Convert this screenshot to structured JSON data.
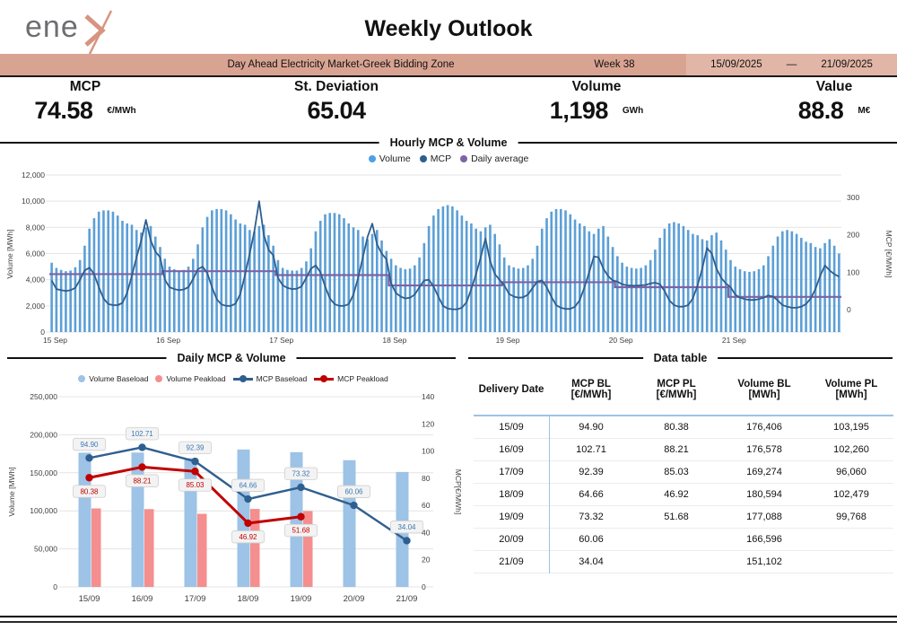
{
  "header": {
    "title": "Weekly Outlook",
    "logo": {
      "text": "ene",
      "mark": "x-chevron"
    }
  },
  "banner": {
    "market_label": "Day Ahead Electricity Market-Greek Bidding Zone",
    "week_label": "Week 38",
    "date_from": "15/09/2025",
    "date_separator": "—",
    "date_to": "21/09/2025"
  },
  "kpis": [
    {
      "label": "MCP",
      "value": "74.58",
      "unit": "€/MWh"
    },
    {
      "label": "St. Deviation",
      "value": "65.04",
      "unit": ""
    },
    {
      "label": "Volume",
      "value": "1,198",
      "unit": "GWh"
    },
    {
      "label": "Value",
      "value": "88.8",
      "unit": "M€"
    }
  ],
  "colors": {
    "banner": "#D9A392",
    "banner_light": "#E2B6A6",
    "logo_accent": "#D79480",
    "bar_volume": "#5C9FD6",
    "line_mcp": "#2E5E8E",
    "line_daily_avg": "#7D63A5",
    "bar_volume_bl": "#9DC3E6",
    "bar_volume_pl": "#F58E8E",
    "line_mcp_bl": "#2F5F8F",
    "line_mcp_pl": "#C00000",
    "table_accent": "#9DC3E6",
    "grid": "#E4E4E4",
    "tick_text": "#404040",
    "label_box_bg": "#F3F3F3",
    "label_box_border": "#CFCFCF"
  },
  "hourly_section": {
    "title": "Hourly MCP & Volume",
    "legend": [
      {
        "label": "Volume",
        "color": "#4DA0E8",
        "type": "dot"
      },
      {
        "label": "MCP",
        "color": "#2E5E8E",
        "type": "dot"
      },
      {
        "label": "Daily average",
        "color": "#7D63A5",
        "type": "dot"
      }
    ],
    "axes": {
      "left_title": "Volume [MWh]",
      "right_title": "MCP [€/MWh]"
    },
    "chart_data": {
      "type": "bar+line",
      "x_day_labels": [
        "15 Sep",
        "16 Sep",
        "17 Sep",
        "18 Sep",
        "19 Sep",
        "20 Sep",
        "21 Sep"
      ],
      "y_left": {
        "min": 0,
        "max": 12000,
        "step": 2000
      },
      "y_right": {
        "min": 0,
        "max": 300,
        "step": 100
      },
      "series": [
        {
          "name": "Volume",
          "type": "bar",
          "axis": "left",
          "unit": "MWh",
          "hourly_values": [
            [
              5300,
              4900,
              4750,
              4650,
              4700,
              4950,
              5500,
              6600,
              7900,
              8700,
              9200,
              9300,
              9300,
              9200,
              8900,
              8500,
              8300,
              8200,
              7800,
              7600,
              8000,
              8100,
              7300,
              6500
            ],
            [
              5600,
              5000,
              4800,
              4700,
              4750,
              5000,
              5600,
              6700,
              8000,
              8800,
              9300,
              9400,
              9400,
              9300,
              9000,
              8600,
              8300,
              8200,
              7800,
              7700,
              8100,
              8200,
              7400,
              6600
            ],
            [
              5500,
              4900,
              4750,
              4700,
              4700,
              4900,
              5400,
              6400,
              7700,
              8500,
              9000,
              9100,
              9100,
              9000,
              8700,
              8300,
              8000,
              7800,
              7300,
              7100,
              7500,
              7800,
              7000,
              6200
            ],
            [
              5600,
              5100,
              4900,
              4800,
              4850,
              5100,
              5700,
              6800,
              8100,
              8900,
              9400,
              9600,
              9700,
              9600,
              9300,
              8900,
              8500,
              8300,
              7900,
              7700,
              8000,
              8200,
              7500,
              6700
            ],
            [
              5700,
              5100,
              4950,
              4850,
              4900,
              5100,
              5600,
              6600,
              7900,
              8700,
              9200,
              9400,
              9400,
              9300,
              9000,
              8600,
              8300,
              8100,
              7700,
              7500,
              7900,
              8100,
              7300,
              6500
            ],
            [
              5800,
              5300,
              5000,
              4900,
              4850,
              4900,
              5100,
              5500,
              6300,
              7200,
              7900,
              8300,
              8400,
              8300,
              8100,
              7800,
              7500,
              7400,
              7100,
              7000,
              7400,
              7600,
              7000,
              6300
            ],
            [
              5500,
              5000,
              4800,
              4650,
              4600,
              4650,
              4800,
              5100,
              5800,
              6600,
              7300,
              7700,
              7800,
              7700,
              7500,
              7200,
              6900,
              6800,
              6500,
              6400,
              6800,
              7100,
              6600,
              6000
            ]
          ]
        },
        {
          "name": "MCP",
          "type": "line",
          "axis": "right",
          "unit": "€/MWh",
          "hourly_values": [
            [
              78,
              55,
              52,
              50,
              52,
              58,
              80,
              105,
              112,
              95,
              60,
              30,
              15,
              12,
              12,
              18,
              45,
              90,
              140,
              185,
              240,
              185,
              155,
              140
            ],
            [
              80,
              60,
              55,
              52,
              54,
              60,
              82,
              108,
              115,
              98,
              60,
              28,
              14,
              10,
              10,
              16,
              42,
              92,
              150,
              210,
              290,
              200,
              160,
              145
            ],
            [
              85,
              65,
              58,
              55,
              56,
              62,
              85,
              110,
              118,
              100,
              62,
              30,
              15,
              10,
              10,
              15,
              40,
              85,
              140,
              195,
              230,
              175,
              150,
              135
            ],
            [
              70,
              45,
              35,
              30,
              32,
              40,
              60,
              78,
              80,
              62,
              35,
              10,
              3,
              1,
              1,
              5,
              20,
              55,
              95,
              140,
              190,
              130,
              95,
              80
            ],
            [
              65,
              42,
              35,
              32,
              33,
              40,
              58,
              75,
              78,
              60,
              34,
              12,
              5,
              2,
              2,
              8,
              25,
              60,
              100,
              142,
              140,
              110,
              90,
              78
            ],
            [
              75,
              68,
              65,
              64,
              64,
              65,
              66,
              70,
              72,
              68,
              50,
              25,
              12,
              8,
              8,
              12,
              30,
              65,
              110,
              165,
              150,
              110,
              85,
              70
            ],
            [
              60,
              40,
              32,
              28,
              26,
              26,
              28,
              32,
              38,
              35,
              25,
              12,
              8,
              5,
              5,
              8,
              15,
              30,
              55,
              90,
              118,
              105,
              95,
              88
            ]
          ]
        },
        {
          "name": "Daily average",
          "type": "step-line",
          "axis": "right",
          "daily_values": [
            94.9,
            102.71,
            92.39,
            64.66,
            73.32,
            60.06,
            34.04
          ]
        }
      ]
    }
  },
  "daily_section": {
    "title": "Daily MCP & Volume",
    "legend": [
      {
        "label": "Volume Baseload",
        "color": "#9DC3E6",
        "type": "dot"
      },
      {
        "label": "Volume Peakload",
        "color": "#F58E8E",
        "type": "dot"
      },
      {
        "label": "MCP Baseload",
        "color": "#2F5F8F",
        "type": "line-dot"
      },
      {
        "label": "MCP Peakload",
        "color": "#C00000",
        "type": "line-dot"
      }
    ],
    "axes": {
      "left_title": "Volume [MWh]",
      "right_title": "MCP[€/MWh]"
    },
    "chart_data": {
      "type": "bar+line",
      "categories": [
        "15/09",
        "16/09",
        "17/09",
        "18/09",
        "19/09",
        "20/09",
        "21/09"
      ],
      "y_left": {
        "min": 0,
        "max": 250000,
        "step": 50000
      },
      "y_right": {
        "min": 0,
        "max": 140,
        "step": 20
      },
      "series": [
        {
          "name": "Volume Baseload",
          "type": "bar",
          "axis": "left",
          "color": "#9DC3E6",
          "values": [
            176406,
            176578,
            169274,
            180594,
            177088,
            166596,
            151102
          ]
        },
        {
          "name": "Volume Peakload",
          "type": "bar",
          "axis": "left",
          "color": "#F58E8E",
          "values": [
            103195,
            102260,
            96060,
            102479,
            99768,
            null,
            null
          ]
        },
        {
          "name": "MCP Baseload",
          "type": "line",
          "axis": "right",
          "color": "#2F5F8F",
          "values": [
            94.9,
            102.71,
            92.39,
            64.66,
            73.32,
            60.06,
            34.04
          ],
          "labels": [
            "94.90",
            "102.71",
            "92.39",
            "64.66",
            "73.32",
            "60.06",
            "34.04"
          ]
        },
        {
          "name": "MCP Peakload",
          "type": "line",
          "axis": "right",
          "color": "#C00000",
          "values": [
            80.38,
            88.21,
            85.03,
            46.92,
            51.68,
            null,
            null
          ],
          "labels": [
            "80.38",
            "88.21",
            "85.03",
            "46.92",
            "51.68",
            null,
            null
          ]
        }
      ]
    }
  },
  "data_table": {
    "title": "Data table",
    "headers": [
      {
        "line1": "Delivery Date",
        "line2": ""
      },
      {
        "line1": "MCP BL",
        "line2": "[€/MWh]"
      },
      {
        "line1": "MCP PL",
        "line2": "[€/MWh]"
      },
      {
        "line1": "Volume BL",
        "line2": "[MWh]"
      },
      {
        "line1": "Volume PL",
        "line2": "[MWh]"
      }
    ],
    "rows": [
      [
        "15/09",
        "94.90",
        "80.38",
        "176,406",
        "103,195"
      ],
      [
        "16/09",
        "102.71",
        "88.21",
        "176,578",
        "102,260"
      ],
      [
        "17/09",
        "92.39",
        "85.03",
        "169,274",
        "96,060"
      ],
      [
        "18/09",
        "64.66",
        "46.92",
        "180,594",
        "102,479"
      ],
      [
        "19/09",
        "73.32",
        "51.68",
        "177,088",
        "99,768"
      ],
      [
        "20/09",
        "60.06",
        "",
        "166,596",
        ""
      ],
      [
        "21/09",
        "34.04",
        "",
        "151,102",
        ""
      ]
    ]
  }
}
